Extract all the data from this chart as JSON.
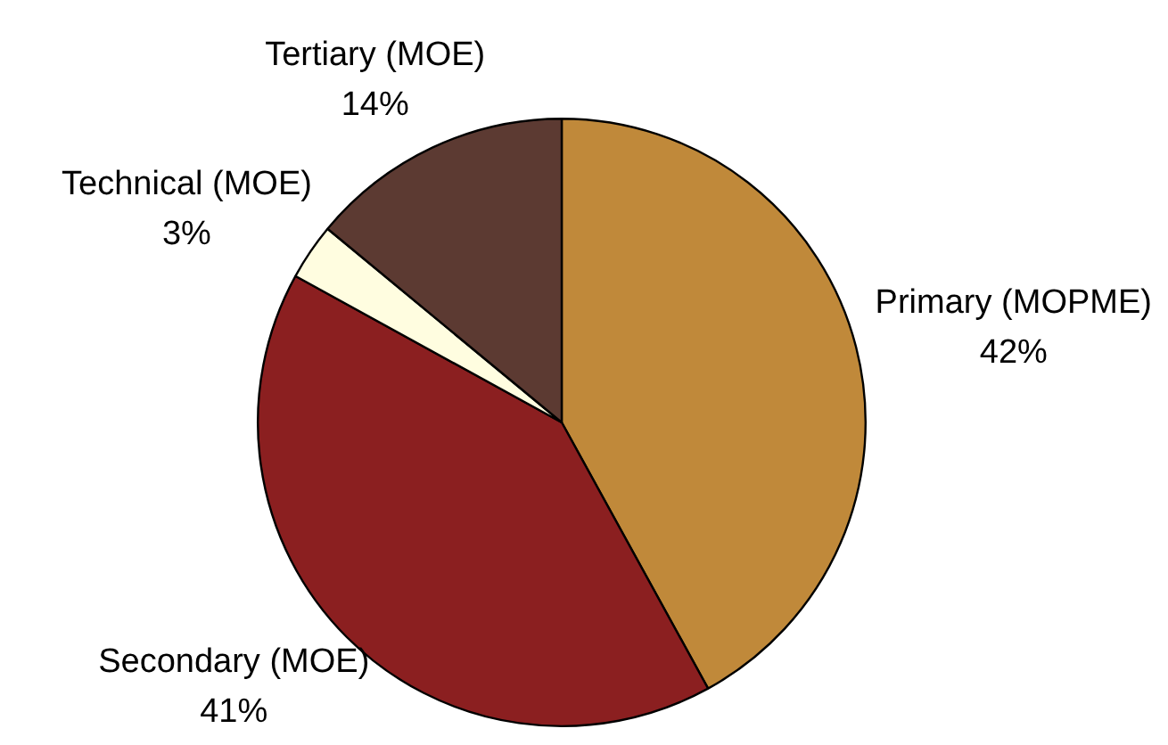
{
  "chart_data": {
    "type": "pie",
    "categories": [
      "Primary (MOPME)",
      "Secondary (MOE)",
      "Technical (MOE)",
      "Tertiary (MOE)"
    ],
    "values": [
      42,
      41,
      3,
      14
    ],
    "colors": [
      "#c0893a",
      "#8b1f20",
      "#fffde0",
      "#5c3a32"
    ],
    "value_labels": [
      "42%",
      "41%",
      "3%",
      "14%"
    ]
  }
}
